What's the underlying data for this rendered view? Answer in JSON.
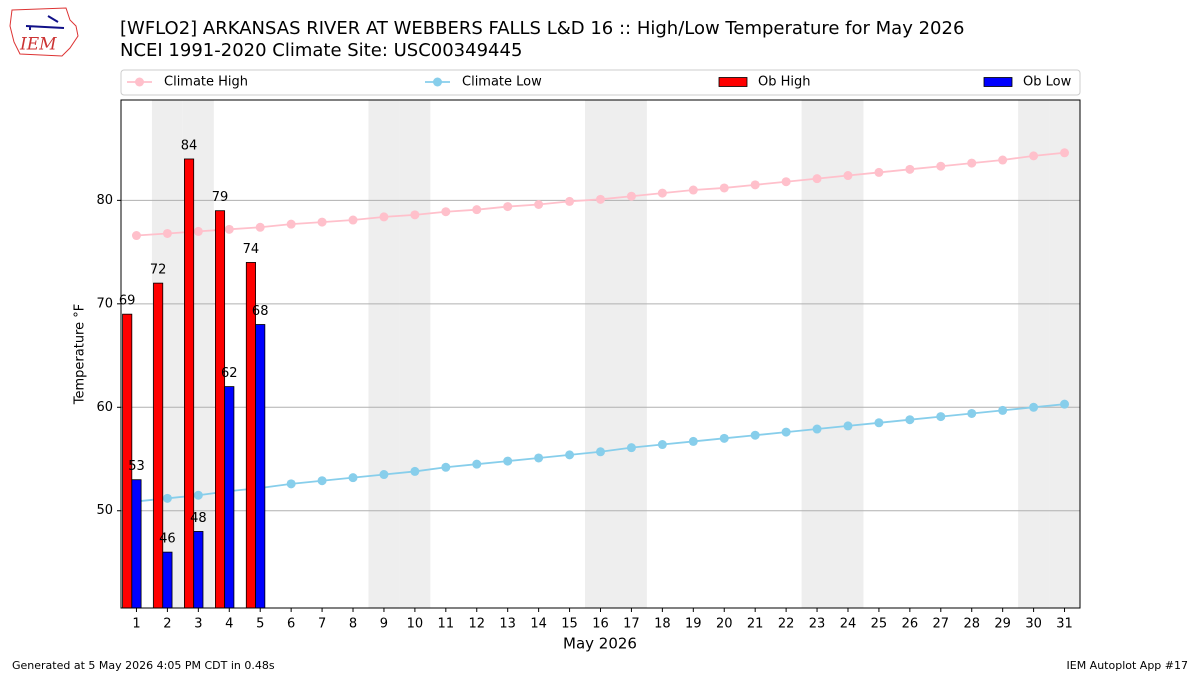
{
  "logo_text": "IEM",
  "footer_left": "Generated at 5 May 2026 4:05 PM CDT in 0.48s",
  "footer_right": "IEM Autoplot App #17",
  "chart_data": {
    "type": "bar",
    "title": "[WFLO2] ARKANSAS RIVER  AT WEBBERS FALLS L&D 16 :: High/Low Temperature for May 2026",
    "subtitle": "NCEI 1991-2020 Climate Site: USC00349445",
    "x_label": "May 2026",
    "y_label": "Temperature °F",
    "x": [
      1,
      2,
      3,
      4,
      5,
      6,
      7,
      8,
      9,
      10,
      11,
      12,
      13,
      14,
      15,
      16,
      17,
      18,
      19,
      20,
      21,
      22,
      23,
      24,
      25,
      26,
      27,
      28,
      29,
      30,
      31
    ],
    "xlim": [
      0.5,
      31.5
    ],
    "xticks": [
      1,
      2,
      3,
      4,
      5,
      6,
      7,
      8,
      9,
      10,
      11,
      12,
      13,
      14,
      15,
      16,
      17,
      18,
      19,
      20,
      21,
      22,
      23,
      24,
      25,
      26,
      27,
      28,
      29,
      30,
      31
    ],
    "ylim": [
      40.6,
      89.7
    ],
    "yticks": [
      50,
      60,
      70,
      80
    ],
    "grid": true,
    "shaded_days": [
      2,
      3,
      9,
      10,
      16,
      17,
      23,
      24,
      30,
      31
    ],
    "series": [
      {
        "name": "Climate High",
        "type": "line",
        "color": "#ffc0cb",
        "values": [
          76.6,
          76.8,
          77.0,
          77.2,
          77.4,
          77.7,
          77.9,
          78.1,
          78.4,
          78.6,
          78.9,
          79.1,
          79.4,
          79.6,
          79.9,
          80.1,
          80.4,
          80.7,
          81.0,
          81.2,
          81.5,
          81.8,
          82.1,
          82.4,
          82.7,
          83.0,
          83.3,
          83.6,
          83.9,
          84.3,
          84.6
        ]
      },
      {
        "name": "Climate Low",
        "type": "line",
        "color": "#87ceeb",
        "values": [
          50.9,
          51.2,
          51.5,
          51.9,
          52.2,
          52.6,
          52.9,
          53.2,
          53.5,
          53.8,
          54.2,
          54.5,
          54.8,
          55.1,
          55.4,
          55.7,
          56.1,
          56.4,
          56.7,
          57.0,
          57.3,
          57.6,
          57.9,
          58.2,
          58.5,
          58.8,
          59.1,
          59.4,
          59.7,
          60.0,
          60.3
        ]
      },
      {
        "name": "Ob High",
        "type": "bar",
        "color": "#ff0000",
        "values": [
          69,
          72,
          84,
          79,
          74,
          null,
          null,
          null,
          null,
          null,
          null,
          null,
          null,
          null,
          null,
          null,
          null,
          null,
          null,
          null,
          null,
          null,
          null,
          null,
          null,
          null,
          null,
          null,
          null,
          null,
          null
        ]
      },
      {
        "name": "Ob Low",
        "type": "bar",
        "color": "#0000ff",
        "values": [
          53,
          46,
          48,
          62,
          68,
          null,
          null,
          null,
          null,
          null,
          null,
          null,
          null,
          null,
          null,
          null,
          null,
          null,
          null,
          null,
          null,
          null,
          null,
          null,
          null,
          null,
          null,
          null,
          null,
          null,
          null
        ]
      }
    ]
  }
}
